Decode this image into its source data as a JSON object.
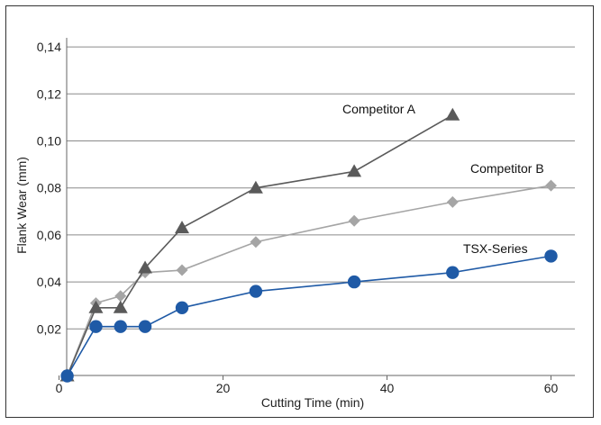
{
  "chart_data": {
    "type": "line",
    "title": "",
    "xlabel": "Cutting Time (min)",
    "ylabel": "Flank Wear (mm)",
    "xlim": [
      0,
      64
    ],
    "ylim": [
      0,
      0.15
    ],
    "xticks": [
      0,
      20,
      40,
      60
    ],
    "xtick_labels": [
      "0",
      "20",
      "40",
      "60"
    ],
    "yticks": [
      0.02,
      0.04,
      0.06,
      0.08,
      0.1,
      0.12,
      0.14
    ],
    "ytick_labels": [
      "0,02",
      "0,04",
      "0,06",
      "0,08",
      "0,10",
      "0,12",
      "0,14"
    ],
    "grid": "horizontal",
    "series": [
      {
        "name": "Competitor A",
        "marker": "triangle",
        "color": "#5a5a5a",
        "x": [
          1,
          4.5,
          7.5,
          10.5,
          15,
          24,
          36,
          48
        ],
        "y": [
          0,
          0.029,
          0.029,
          0.046,
          0.063,
          0.08,
          0.087,
          0.111
        ]
      },
      {
        "name": "Competitor B",
        "marker": "diamond",
        "color": "#a5a5a5",
        "x": [
          1,
          4.5,
          7.5,
          10.5,
          15,
          24,
          36,
          48,
          60
        ],
        "y": [
          0,
          0.031,
          0.034,
          0.044,
          0.045,
          0.057,
          0.066,
          0.074,
          0.081
        ]
      },
      {
        "name": "TSX-Series",
        "marker": "circle",
        "color": "#1f5aa6",
        "x": [
          1,
          4.5,
          7.5,
          10.5,
          15,
          24,
          36,
          48,
          60
        ],
        "y": [
          0,
          0.021,
          0.021,
          0.021,
          0.029,
          0.036,
          0.04,
          0.044,
          0.051
        ]
      }
    ]
  }
}
